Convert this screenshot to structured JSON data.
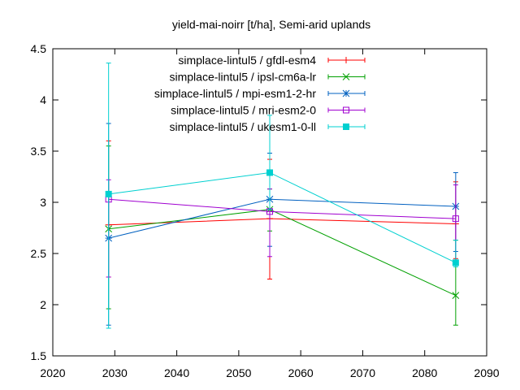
{
  "chart_data": {
    "type": "line",
    "title": "yield-mai-noirr [t/ha], Semi-arid uplands",
    "xlabel": "",
    "ylabel": "",
    "xlim": [
      2020,
      2090
    ],
    "ylim": [
      1.5,
      4.5
    ],
    "x_ticks": [
      2020,
      2030,
      2040,
      2050,
      2060,
      2070,
      2080,
      2090
    ],
    "y_ticks": [
      1.5,
      2,
      2.5,
      3,
      3.5,
      4,
      4.5
    ],
    "x_tick_labels": [
      "2020",
      "2030",
      "2040",
      "2050",
      "2060",
      "2070",
      "2080",
      "2090"
    ],
    "y_tick_labels": [
      "1.5",
      "2",
      "2.5",
      "3",
      "3.5",
      "4",
      "4.5"
    ],
    "grid": false,
    "legend_position": "top-right",
    "series": [
      {
        "name": "simplace-lintul5 / gfdl-esm4",
        "color": "#ff0000",
        "marker": "plus",
        "x": [
          2029,
          2055,
          2085
        ],
        "y": [
          2.78,
          2.84,
          2.79
        ],
        "err_low": [
          2.27,
          2.25,
          2.45
        ],
        "err_high": [
          3.6,
          3.42,
          3.2
        ]
      },
      {
        "name": "simplace-lintul5 / ipsl-cm6a-lr",
        "color": "#00a000",
        "marker": "cross",
        "x": [
          2029,
          2055,
          2085
        ],
        "y": [
          2.74,
          2.93,
          2.09
        ],
        "err_low": [
          1.96,
          2.72,
          1.8
        ],
        "err_high": [
          3.55,
          3.13,
          2.63
        ]
      },
      {
        "name": "simplace-lintul5 / mpi-esm1-2-hr",
        "color": "#0060c0",
        "marker": "star",
        "x": [
          2029,
          2055,
          2085
        ],
        "y": [
          2.65,
          3.03,
          2.96
        ],
        "err_low": [
          1.8,
          2.57,
          2.52
        ],
        "err_high": [
          3.77,
          3.48,
          3.29
        ]
      },
      {
        "name": "simplace-lintul5 / mri-esm2-0",
        "color": "#a000d0",
        "marker": "square-open",
        "x": [
          2029,
          2055,
          2085
        ],
        "y": [
          3.03,
          2.91,
          2.84
        ],
        "err_low": [
          2.27,
          2.47,
          2.4
        ],
        "err_high": [
          3.22,
          3.13,
          3.17
        ]
      },
      {
        "name": "simplace-lintul5 / ukesm1-0-ll",
        "color": "#00d0d0",
        "marker": "square-filled",
        "x": [
          2029,
          2055,
          2085
        ],
        "y": [
          3.08,
          3.29,
          2.41
        ],
        "err_low": [
          1.77,
          2.93,
          2.37
        ],
        "err_high": [
          4.36,
          3.85,
          2.63
        ]
      }
    ]
  }
}
